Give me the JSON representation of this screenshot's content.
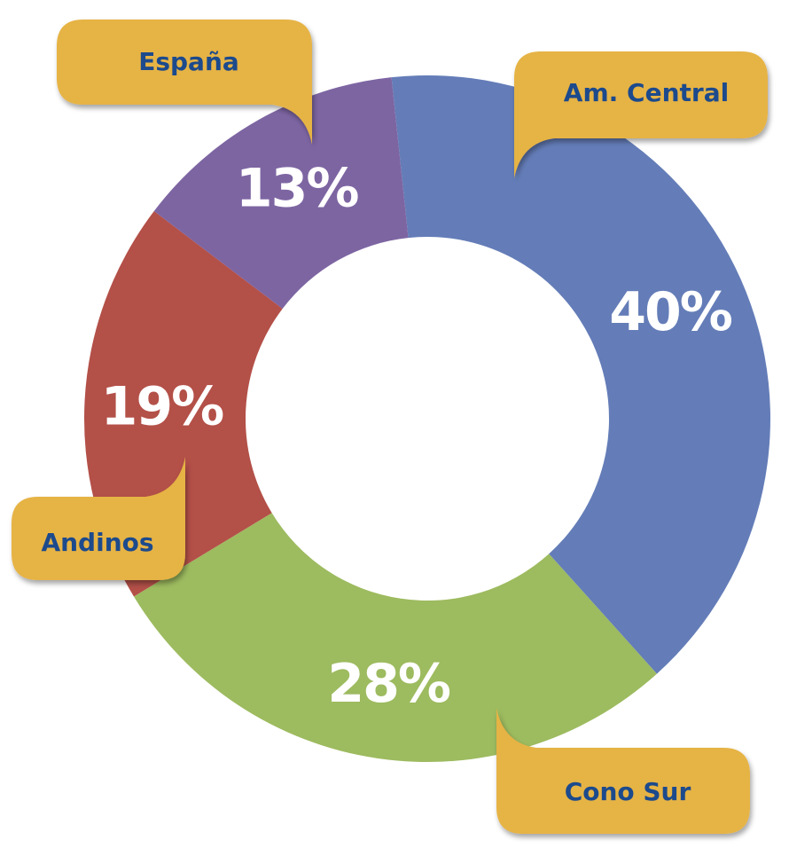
{
  "chart_data": {
    "type": "pie",
    "variant": "donut",
    "slices": [
      {
        "label": "Am. Central",
        "value": 40,
        "value_label": "40%",
        "color": "#647db8"
      },
      {
        "label": "Cono Sur",
        "value": 28,
        "value_label": "28%",
        "color": "#9dbb5f"
      },
      {
        "label": "Andinos",
        "value": 19,
        "value_label": "19%",
        "color": "#b35048"
      },
      {
        "label": "España",
        "value": 13,
        "value_label": "13%",
        "color": "#7d65a2"
      }
    ],
    "callout_color": "#e6b345",
    "callout_text_color": "#1c4a8c",
    "label_style": "callout-bubbles"
  }
}
